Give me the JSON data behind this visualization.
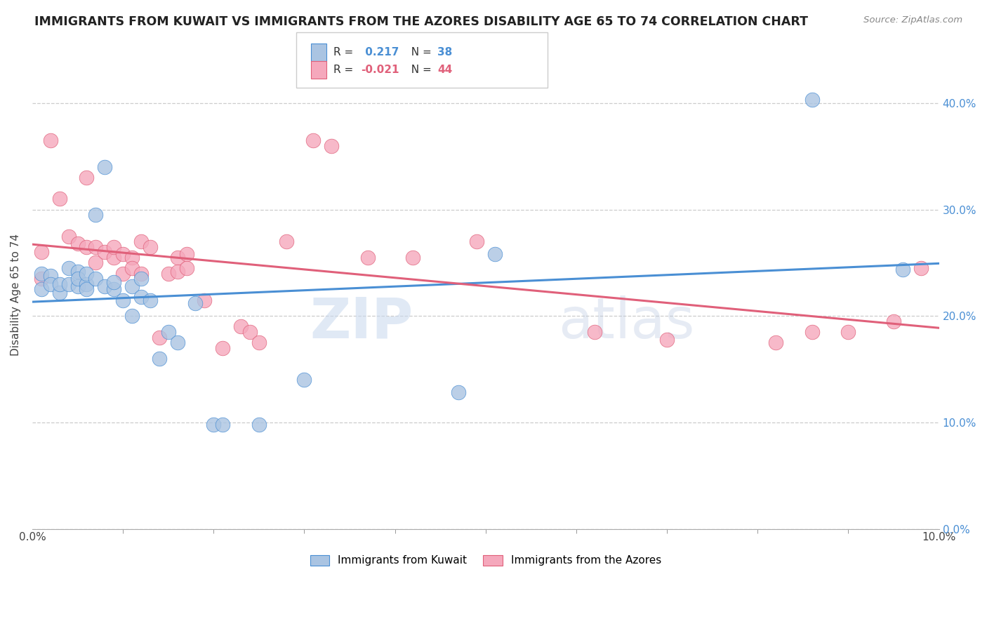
{
  "title": "IMMIGRANTS FROM KUWAIT VS IMMIGRANTS FROM THE AZORES DISABILITY AGE 65 TO 74 CORRELATION CHART",
  "source": "Source: ZipAtlas.com",
  "ylabel": "Disability Age 65 to 74",
  "xlim": [
    0.0,
    0.1
  ],
  "ylim": [
    0.0,
    0.44
  ],
  "r1": 0.217,
  "n1": 38,
  "r2": -0.021,
  "n2": 44,
  "color_kuwait": "#aac4e2",
  "color_azores": "#f5a8bc",
  "line_color_kuwait": "#4a8fd4",
  "line_color_azores": "#e0607a",
  "legend_label1": "Immigrants from Kuwait",
  "legend_label2": "Immigrants from the Azores",
  "watermark_zip": "ZIP",
  "watermark_atlas": "atlas",
  "kuwait_x": [
    0.001,
    0.001,
    0.002,
    0.002,
    0.003,
    0.003,
    0.004,
    0.004,
    0.005,
    0.005,
    0.005,
    0.006,
    0.006,
    0.006,
    0.007,
    0.007,
    0.008,
    0.008,
    0.009,
    0.009,
    0.01,
    0.011,
    0.011,
    0.012,
    0.012,
    0.013,
    0.014,
    0.015,
    0.016,
    0.018,
    0.02,
    0.021,
    0.025,
    0.03,
    0.047,
    0.051,
    0.086,
    0.096
  ],
  "kuwait_y": [
    0.24,
    0.225,
    0.238,
    0.23,
    0.222,
    0.23,
    0.245,
    0.23,
    0.228,
    0.242,
    0.235,
    0.23,
    0.225,
    0.24,
    0.235,
    0.295,
    0.34,
    0.228,
    0.225,
    0.232,
    0.215,
    0.228,
    0.2,
    0.218,
    0.235,
    0.215,
    0.16,
    0.185,
    0.175,
    0.212,
    0.098,
    0.098,
    0.098,
    0.14,
    0.128,
    0.258,
    0.403,
    0.244
  ],
  "azores_x": [
    0.001,
    0.001,
    0.002,
    0.003,
    0.004,
    0.005,
    0.006,
    0.006,
    0.007,
    0.007,
    0.008,
    0.009,
    0.009,
    0.01,
    0.01,
    0.011,
    0.011,
    0.012,
    0.012,
    0.013,
    0.014,
    0.015,
    0.016,
    0.016,
    0.017,
    0.017,
    0.019,
    0.021,
    0.023,
    0.024,
    0.025,
    0.028,
    0.031,
    0.033,
    0.037,
    0.042,
    0.049,
    0.062,
    0.07,
    0.082,
    0.086,
    0.09,
    0.095,
    0.098
  ],
  "azores_y": [
    0.235,
    0.26,
    0.365,
    0.31,
    0.275,
    0.268,
    0.33,
    0.265,
    0.25,
    0.265,
    0.26,
    0.255,
    0.265,
    0.258,
    0.24,
    0.255,
    0.245,
    0.27,
    0.24,
    0.265,
    0.18,
    0.24,
    0.255,
    0.242,
    0.258,
    0.245,
    0.215,
    0.17,
    0.19,
    0.185,
    0.175,
    0.27,
    0.365,
    0.36,
    0.255,
    0.255,
    0.27,
    0.185,
    0.178,
    0.175,
    0.185,
    0.185,
    0.195,
    0.245
  ]
}
